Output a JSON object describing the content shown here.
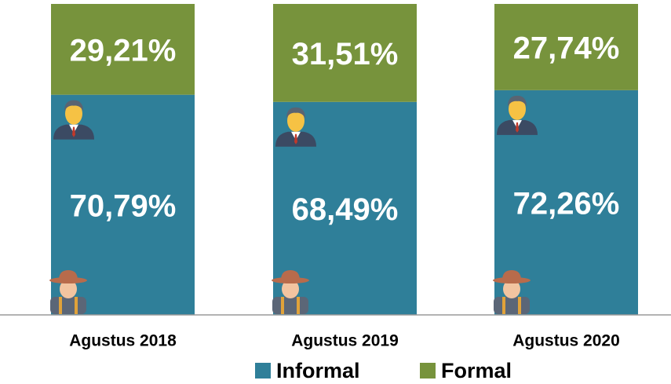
{
  "chart_data": {
    "type": "stacked_bar",
    "categories": [
      "Agustus 2018",
      "Agustus 2019",
      "Agustus 2020"
    ],
    "series": [
      {
        "name": "Informal",
        "color": "#2f7f99",
        "values": [
          70.79,
          68.49,
          72.26
        ],
        "value_labels": [
          "70,79%",
          "68,49%",
          "72,26%"
        ]
      },
      {
        "name": "Formal",
        "color": "#77933c",
        "values": [
          29.21,
          31.51,
          27.74
        ],
        "value_labels": [
          "29,21%",
          "31,51%",
          "27,74%"
        ]
      }
    ],
    "ylim": [
      0,
      100
    ]
  }
}
